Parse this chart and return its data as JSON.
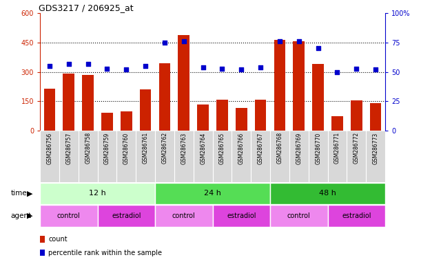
{
  "title": "GDS3217 / 206925_at",
  "samples": [
    "GSM286756",
    "GSM286757",
    "GSM286758",
    "GSM286759",
    "GSM286760",
    "GSM286761",
    "GSM286762",
    "GSM286763",
    "GSM286764",
    "GSM286765",
    "GSM286766",
    "GSM286767",
    "GSM286768",
    "GSM286769",
    "GSM286770",
    "GSM286771",
    "GSM286772",
    "GSM286773"
  ],
  "counts": [
    215,
    290,
    285,
    90,
    100,
    210,
    345,
    490,
    135,
    160,
    115,
    160,
    465,
    455,
    340,
    75,
    155,
    140
  ],
  "percentiles": [
    55,
    57,
    57,
    53,
    52,
    55,
    75,
    76,
    54,
    53,
    52,
    54,
    76,
    76,
    70,
    50,
    53,
    52
  ],
  "ylim_left": [
    0,
    600
  ],
  "ylim_right": [
    0,
    100
  ],
  "yticks_left": [
    0,
    150,
    300,
    450,
    600
  ],
  "yticks_right": [
    0,
    25,
    50,
    75,
    100
  ],
  "bar_color": "#cc2200",
  "dot_color": "#0000cc",
  "time_groups": [
    {
      "label": "12 h",
      "start": 0,
      "end": 6,
      "color": "#ccffcc"
    },
    {
      "label": "24 h",
      "start": 6,
      "end": 12,
      "color": "#55dd55"
    },
    {
      "label": "48 h",
      "start": 12,
      "end": 18,
      "color": "#33bb33"
    }
  ],
  "agent_groups": [
    {
      "label": "control",
      "start": 0,
      "end": 3,
      "color": "#ee88ee"
    },
    {
      "label": "estradiol",
      "start": 3,
      "end": 6,
      "color": "#dd44dd"
    },
    {
      "label": "control",
      "start": 6,
      "end": 9,
      "color": "#ee88ee"
    },
    {
      "label": "estradiol",
      "start": 9,
      "end": 12,
      "color": "#dd44dd"
    },
    {
      "label": "control",
      "start": 12,
      "end": 15,
      "color": "#ee88ee"
    },
    {
      "label": "estradiol",
      "start": 15,
      "end": 18,
      "color": "#dd44dd"
    }
  ],
  "time_label": "time",
  "agent_label": "agent",
  "legend_count": "count",
  "legend_pct": "percentile rank within the sample",
  "tick_color_left": "#cc2200",
  "tick_color_right": "#0000cc",
  "xlab_bg": "#d8d8d8",
  "background_color": "#ffffff"
}
